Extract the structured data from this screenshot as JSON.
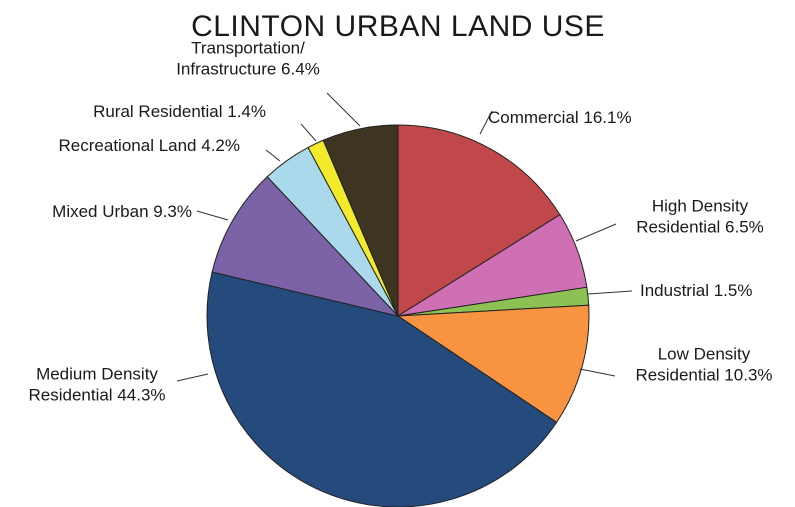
{
  "chart_data": {
    "type": "pie",
    "title": "CLINTON URBAN LAND USE",
    "slices": [
      {
        "label": "Commercial",
        "value": 16.1,
        "label_lines": [
          "Commercial 16.1%"
        ],
        "color": "#c0474a"
      },
      {
        "label": "High Density Residential",
        "value": 6.5,
        "label_lines": [
          "High Density",
          "Residential 6.5%"
        ],
        "color": "#cf6fb4"
      },
      {
        "label": "Industrial",
        "value": 1.5,
        "label_lines": [
          "Industrial 1.5%"
        ],
        "color": "#8dc153"
      },
      {
        "label": "Low Density Residential",
        "value": 10.3,
        "label_lines": [
          "Low Density",
          "Residential 10.3%"
        ],
        "color": "#f79341"
      },
      {
        "label": "Medium Density Residential",
        "value": 44.3,
        "label_lines": [
          "Medium Density",
          "Residential 44.3%"
        ],
        "color": "#244b7c"
      },
      {
        "label": "Mixed Urban",
        "value": 9.3,
        "label_lines": [
          "Mixed Urban 9.3%"
        ],
        "color": "#7c63a8"
      },
      {
        "label": "Recreational Land",
        "value": 4.2,
        "label_lines": [
          "Recreational Land 4.2%"
        ],
        "color": "#a9d9ea"
      },
      {
        "label": "Rural Residential",
        "value": 1.4,
        "label_lines": [
          "Rural Residential 1.4%"
        ],
        "color": "#f2ea2a"
      },
      {
        "label": "Transportation/Infrastructure",
        "value": 6.4,
        "label_lines": [
          "Transportation/",
          "Infrastructure 6.4%"
        ],
        "color": "#3e3422"
      }
    ]
  }
}
